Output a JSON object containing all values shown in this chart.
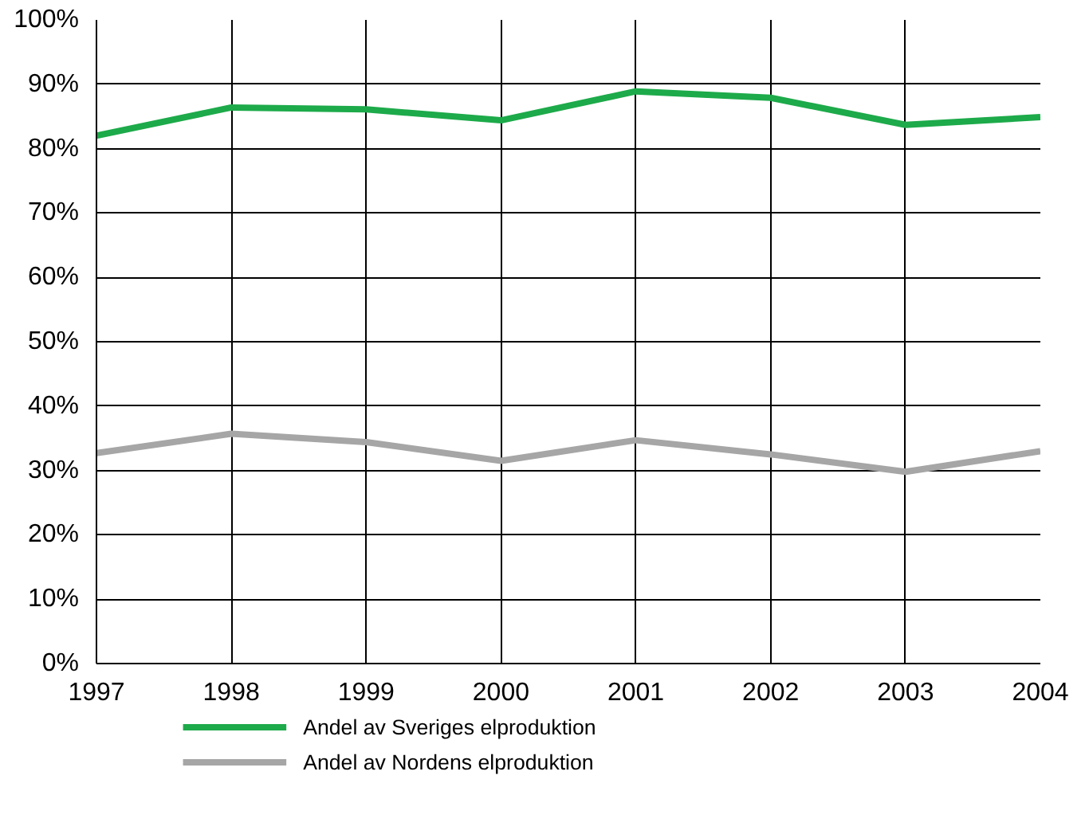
{
  "chart_data": {
    "type": "line",
    "x": [
      1997,
      1998,
      1999,
      2000,
      2001,
      2002,
      2003,
      2004
    ],
    "series": [
      {
        "name": "Andel av Sveriges elproduktion",
        "color": "#1daa4a",
        "values": [
          82,
          86.4,
          86.1,
          84.4,
          88.9,
          87.9,
          83.7,
          84.9
        ]
      },
      {
        "name": "Andel av Nordens elproduktion",
        "color": "#a6a6a6",
        "values": [
          32.7,
          35.7,
          34.4,
          31.5,
          34.7,
          32.5,
          29.8,
          33
        ]
      }
    ],
    "xlim": [
      1997,
      2004
    ],
    "xticks": [
      1997,
      1998,
      1999,
      2000,
      2001,
      2002,
      2003,
      2004
    ],
    "ylim": [
      0,
      100
    ],
    "yticks": [
      {
        "value": 0,
        "label": "0%"
      },
      {
        "value": 10,
        "label": "10%"
      },
      {
        "value": 20,
        "label": "20%"
      },
      {
        "value": 30,
        "label": "30%"
      },
      {
        "value": 40,
        "label": "40%"
      },
      {
        "value": 50,
        "label": "50%"
      },
      {
        "value": 60,
        "label": "60%"
      },
      {
        "value": 70,
        "label": "70%"
      },
      {
        "value": 80,
        "label": "80%"
      },
      {
        "value": 90,
        "label": "90%"
      },
      {
        "value": 100,
        "label": "100%"
      }
    ],
    "grid": true,
    "legend": "bottom",
    "marker": "none",
    "line_style": "solid"
  }
}
